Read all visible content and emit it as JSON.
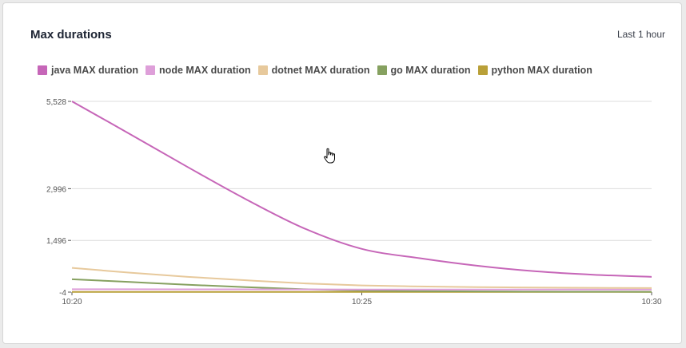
{
  "card": {
    "title": "Max durations",
    "time_range": "Last 1 hour"
  },
  "chart_data": {
    "type": "line",
    "title": "Max durations",
    "x": [
      "10:20",
      "10:21",
      "10:22",
      "10:23",
      "10:24",
      "10:25",
      "10:26",
      "10:27",
      "10:28",
      "10:29",
      "10:30"
    ],
    "x_tick_labels": [
      "10:20",
      "10:25",
      "10:30"
    ],
    "y_ticks": [
      -4,
      1496,
      2996,
      5528
    ],
    "y_tick_labels": [
      "-4",
      "1,496",
      "2,996",
      "5,528"
    ],
    "ylim": [
      -4,
      5528
    ],
    "grid": true,
    "legend_position": "top-left",
    "series": [
      {
        "name": "java MAX duration",
        "color": "#c666b8",
        "values": [
          5528,
          4580,
          3620,
          2690,
          1850,
          1250,
          980,
          760,
          600,
          500,
          440
        ]
      },
      {
        "name": "node MAX duration",
        "color": "#de9fd9",
        "values": [
          80,
          80,
          78,
          76,
          74,
          72,
          72,
          70,
          70,
          70,
          70
        ]
      },
      {
        "name": "dotnet MAX duration",
        "color": "#e7c99c",
        "values": [
          700,
          560,
          440,
          340,
          250,
          190,
          160,
          140,
          130,
          120,
          115
        ]
      },
      {
        "name": "go MAX duration",
        "color": "#86a160",
        "values": [
          370,
          290,
          210,
          140,
          80,
          40,
          25,
          15,
          10,
          8,
          6
        ]
      },
      {
        "name": "python MAX duration",
        "color": "#b9a038",
        "values": [
          2,
          2,
          2,
          2,
          2,
          2,
          2,
          2,
          2,
          2,
          2
        ]
      }
    ]
  }
}
